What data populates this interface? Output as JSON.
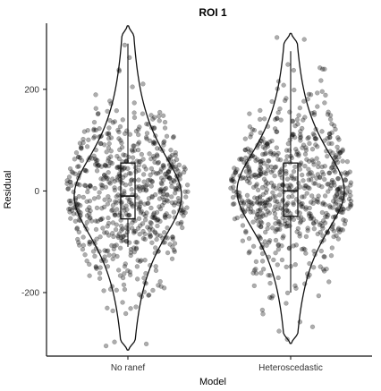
{
  "chart_data": {
    "type": "violin",
    "title": "ROI 1",
    "xlabel": "Model",
    "ylabel": "Residual",
    "categories": [
      "No ranef",
      "Heteroscedastic"
    ],
    "ylim": [
      -325,
      330
    ],
    "yticks": [
      -200,
      0,
      200
    ],
    "ytick_labels": [
      "-200",
      "0",
      "200"
    ],
    "grid": false,
    "legend": "none",
    "colors": {
      "point_fill": "#000000",
      "point_opacity": 0.32,
      "outline": "#111111"
    },
    "series": [
      {
        "category": "No ranef",
        "min": -313,
        "q1": -55,
        "median": -10,
        "q3": 55,
        "max": 325,
        "whisker_low": -110,
        "whisker_high": 290,
        "n_points": 700,
        "point_sd": 80
      },
      {
        "category": "Heteroscedastic",
        "min": -300,
        "q1": -50,
        "median": 0,
        "q3": 55,
        "max": 310,
        "whisker_low": -200,
        "whisker_high": 275,
        "n_points": 700,
        "point_sd": 78
      }
    ]
  }
}
